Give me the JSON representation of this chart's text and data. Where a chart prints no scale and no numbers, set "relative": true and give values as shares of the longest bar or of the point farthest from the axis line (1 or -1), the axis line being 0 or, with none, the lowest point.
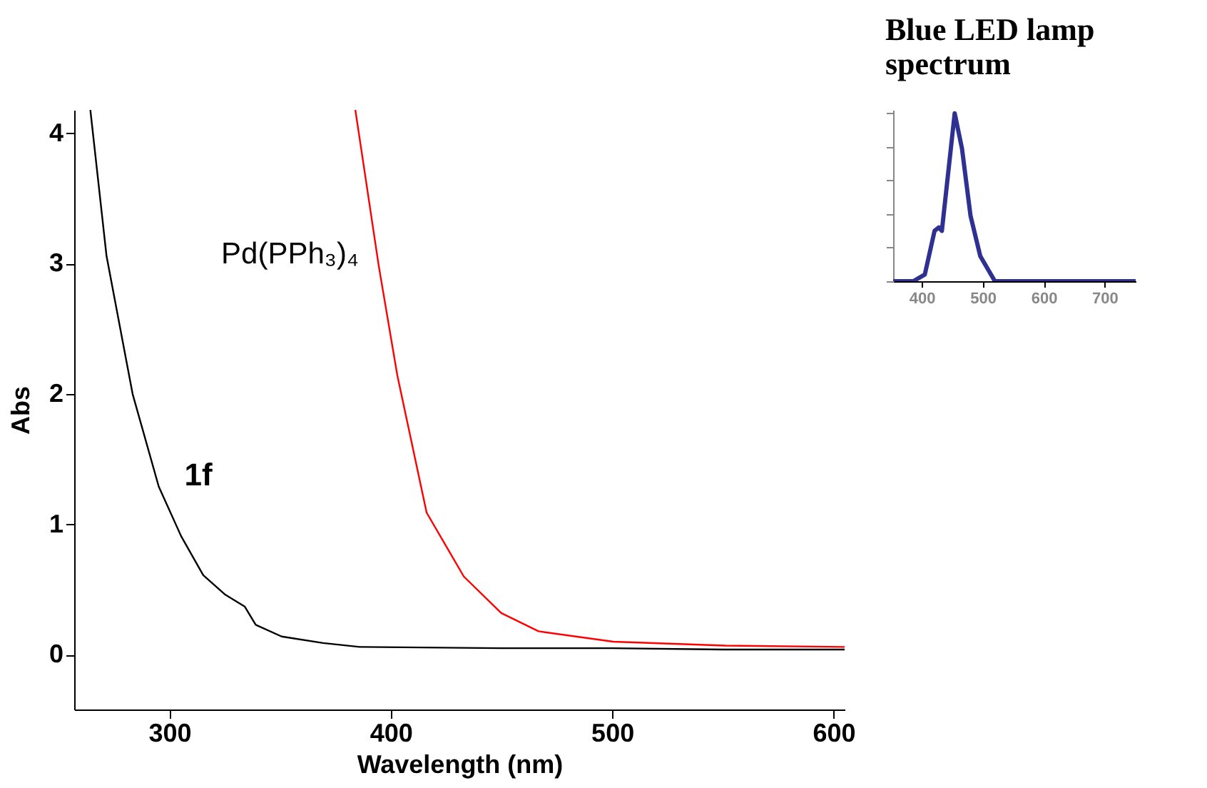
{
  "chart_data": [
    {
      "type": "line",
      "xlabel": "Wavelength (nm)",
      "ylabel": "Abs",
      "xlim": [
        257,
        605
      ],
      "ylim": [
        -0.42,
        4.18
      ],
      "xticks": [
        300,
        400,
        500,
        600
      ],
      "yticks": [
        0,
        1,
        2,
        3,
        4
      ],
      "grid": false,
      "legend": false,
      "marker": "none",
      "line_style": "solid",
      "series": [
        {
          "name": "1f",
          "color": "#000000",
          "x": [
            264.3,
            271.6,
            283.4,
            295.2,
            305.3,
            315.3,
            325.3,
            334,
            339,
            350.7,
            369.4,
            386,
            450,
            500,
            550,
            605
          ],
          "values": [
            4.18,
            3.06,
            2.0,
            1.29,
            0.91,
            0.61,
            0.46,
            0.37,
            0.23,
            0.14,
            0.09,
            0.06,
            0.05,
            0.05,
            0.04,
            0.04
          ]
        },
        {
          "name": "Pd(PPh₃)₄",
          "color": "#ff0000",
          "x": [
            384,
            394.6,
            403,
            416.2,
            433,
            449.9,
            466.7,
            500.5,
            551,
            605
          ],
          "values": [
            4.18,
            2.98,
            2.14,
            1.09,
            0.6,
            0.32,
            0.18,
            0.1,
            0.07,
            0.06
          ]
        }
      ]
    },
    {
      "type": "line",
      "title": "Blue LED lamp spectrum",
      "relative": true,
      "xlim": [
        353,
        751
      ],
      "xticks": [
        400,
        500,
        600,
        700
      ],
      "grid": false,
      "marker": "none",
      "line_style": "solid",
      "series": [
        {
          "color": "#2e3192",
          "x": [
            353,
            386,
            405,
            421,
            428,
            433,
            442,
            454,
            466,
            480,
            496,
            520,
            751
          ],
          "values": [
            0,
            0,
            0.04,
            0.3,
            0.32,
            0.3,
            0.6,
            1,
            0.79,
            0.39,
            0.15,
            0,
            0
          ]
        }
      ]
    }
  ]
}
